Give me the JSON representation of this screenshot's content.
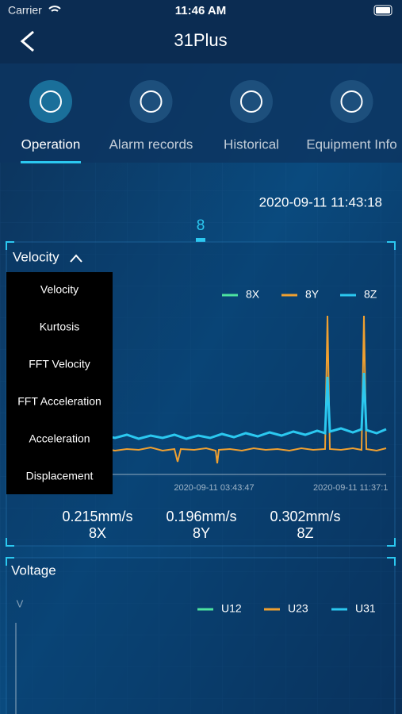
{
  "status_bar": {
    "carrier": "Carrier",
    "time": "11:46 AM"
  },
  "nav": {
    "title": "31Plus"
  },
  "tabs": [
    {
      "label": "Operation",
      "active": true
    },
    {
      "label": "Alarm records",
      "active": false
    },
    {
      "label": "Historical",
      "active": false
    },
    {
      "label": "Equipment Info",
      "active": false
    }
  ],
  "timestamp": "2020-09-11 11:43:18",
  "device": "8",
  "velocity_card": {
    "selector": "Velocity",
    "menu": [
      "Velocity",
      "Kurtosis",
      "FFT Velocity",
      "FFT Acceleration",
      "Acceleration",
      "Displacement"
    ],
    "legend": [
      {
        "name": "8X",
        "color": "#4de3a0"
      },
      {
        "name": "8Y",
        "color": "#f0a030"
      },
      {
        "name": "8Z",
        "color": "#2bc8f0"
      }
    ],
    "x_labels": [
      "2020-09-11 03:43:47",
      "2020-09-11 11:37:1"
    ],
    "readings": [
      {
        "value": "0.215mm/s",
        "axis": "8X"
      },
      {
        "value": "0.196mm/s",
        "axis": "8Y"
      },
      {
        "value": "0.302mm/s",
        "axis": "8Z"
      }
    ]
  },
  "voltage_card": {
    "title": "Voltage",
    "unit": "V",
    "legend": [
      {
        "name": "U12",
        "color": "#4de3a0"
      },
      {
        "name": "U23",
        "color": "#f0a030"
      },
      {
        "name": "U31",
        "color": "#2bc8f0"
      }
    ]
  }
}
